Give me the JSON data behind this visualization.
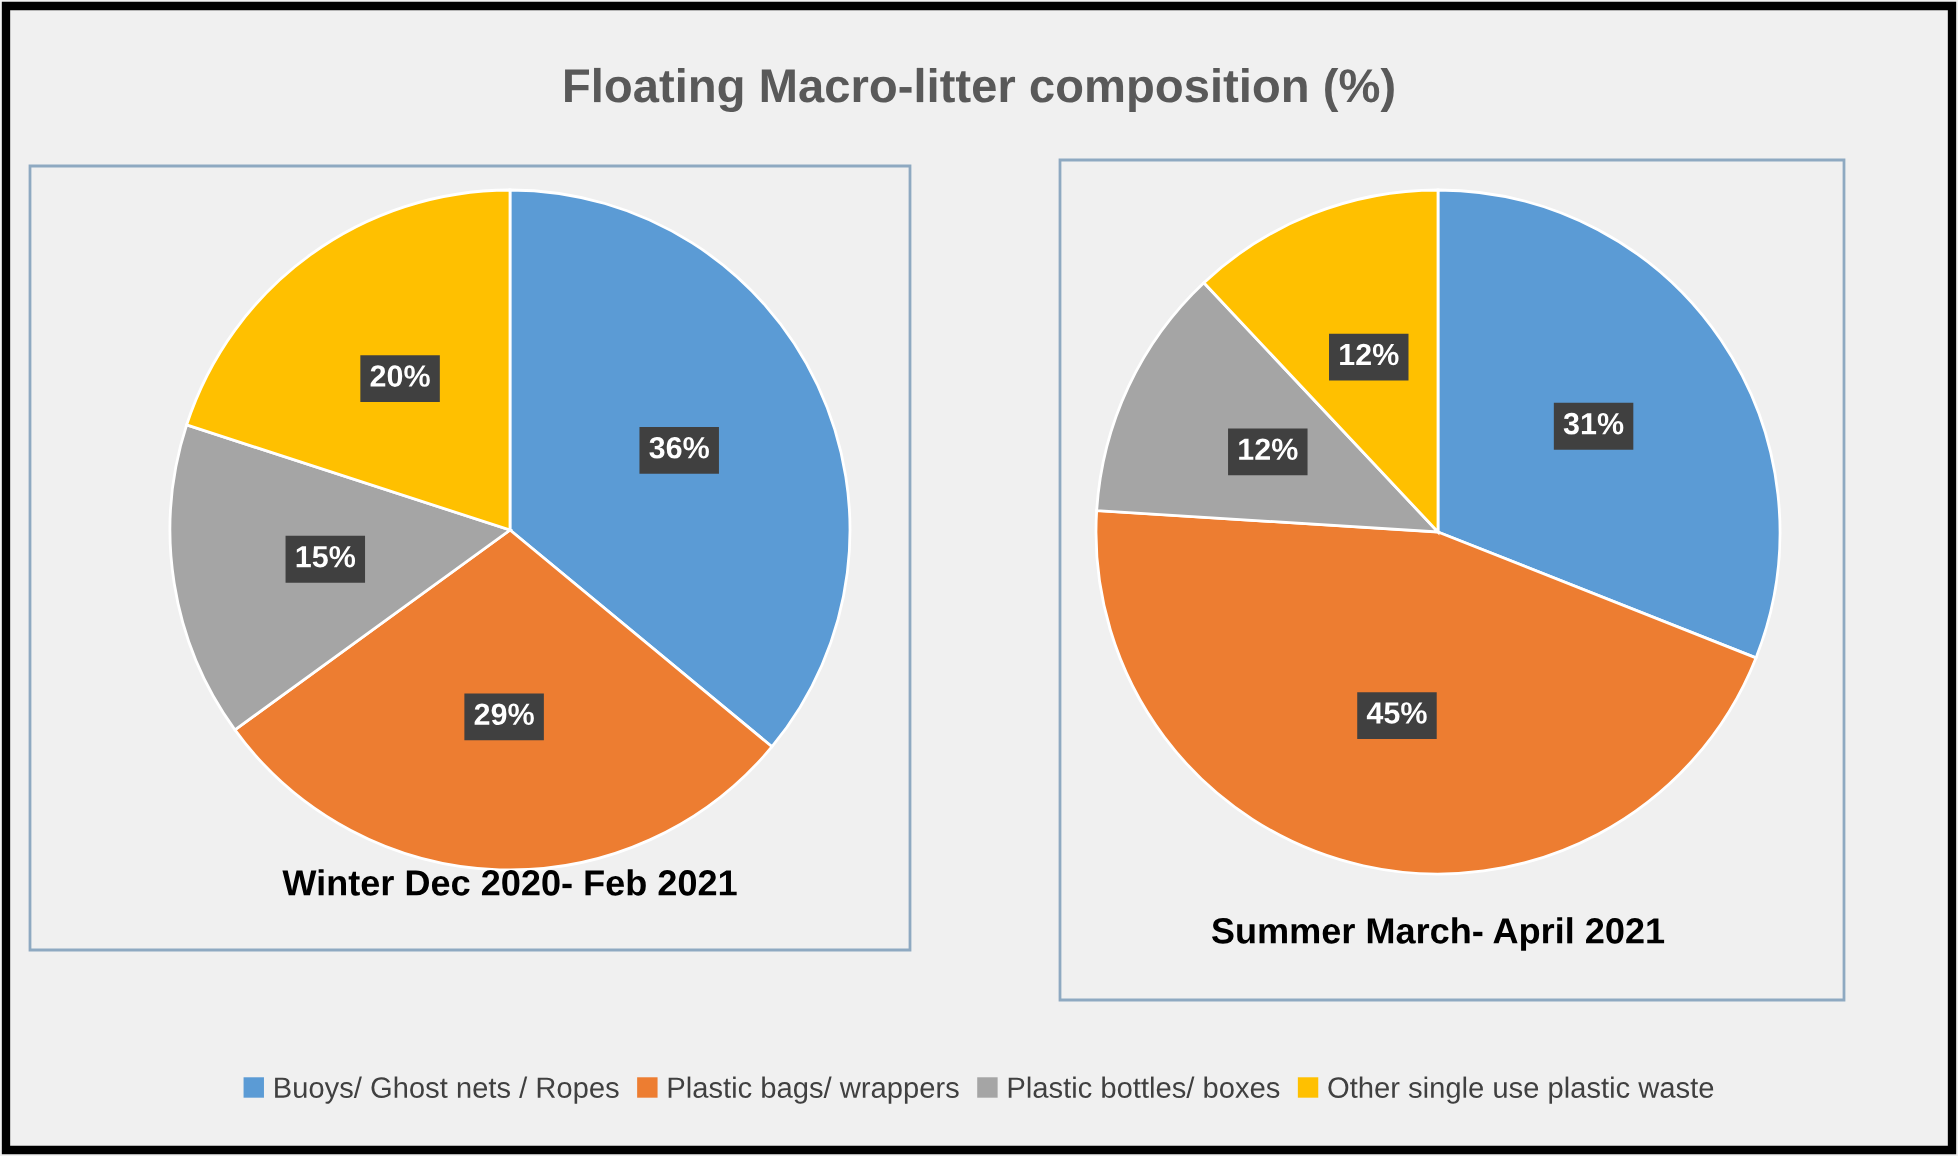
{
  "chart_data": [
    {
      "type": "pie",
      "title": "Floating Macro-litter composition (%)",
      "xlabel": "Winter Dec 2020- Feb 2021",
      "categories": [
        "Buoys/ Ghost nets / Ropes",
        "Plastic bags/ wrappers",
        "Plastic bottles/ boxes",
        "Other single use plastic waste"
      ],
      "values": [
        36,
        29,
        15,
        20
      ],
      "value_labels": [
        "36%",
        "29%",
        "15%",
        "20%"
      ],
      "colors": [
        "#5b9bd5",
        "#ed7d31",
        "#a5a5a5",
        "#ffc000"
      ],
      "legend": "bottom"
    },
    {
      "type": "pie",
      "xlabel": "Summer March- April 2021",
      "categories": [
        null,
        null,
        null,
        null
      ],
      "values": [
        31,
        45,
        12,
        12
      ],
      "value_labels": [
        "31%",
        "45%",
        "12%",
        "12%"
      ],
      "colors": [
        "#5b9bd5",
        "#ed7d31",
        "#a5a5a5",
        "#ffc000"
      ]
    }
  ]
}
